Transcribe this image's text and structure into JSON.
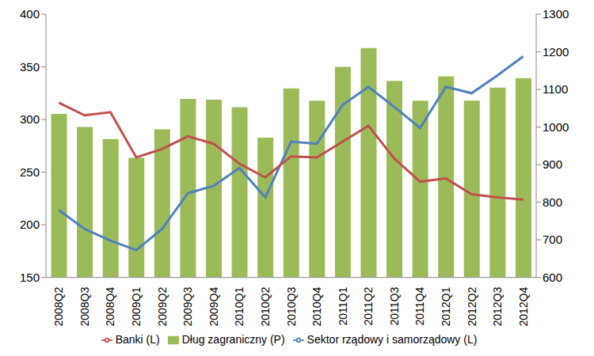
{
  "chart_data": {
    "type": "bar",
    "categories": [
      "2008Q2",
      "2008Q3",
      "2008Q4",
      "2009Q1",
      "2009Q2",
      "2009Q3",
      "2009Q4",
      "2010Q1",
      "2010Q2",
      "2010Q3",
      "2010Q4",
      "2011Q1",
      "2011Q2",
      "2011Q3",
      "2011Q4",
      "2012Q1",
      "2012Q2",
      "2012Q3",
      "2012Q4"
    ],
    "series": [
      {
        "name": "Dług zagraniczny (P)",
        "type": "bar",
        "axis": "y2",
        "color": "#9bbb59",
        "values": [
          1035,
          1000,
          968,
          918,
          994,
          1075,
          1073,
          1053,
          972,
          1103,
          1070,
          1160,
          1210,
          1123,
          1070,
          1135,
          1070,
          1105,
          1130
        ]
      },
      {
        "name": "Sektor rządowy i samorządowy (L)",
        "type": "line",
        "color": "#4f81bd",
        "values": [
          214,
          196,
          185,
          176,
          196,
          230,
          237,
          254,
          226,
          279,
          277,
          314,
          331,
          312,
          292,
          331,
          325,
          342,
          360
        ]
      },
      {
        "name": "Banki (L)",
        "type": "line",
        "color": "#c0504d",
        "values": [
          316,
          304,
          307,
          264,
          272,
          284,
          277,
          258,
          245,
          265,
          264,
          279,
          294,
          263,
          241,
          244,
          229,
          226,
          224
        ]
      }
    ],
    "ylim": [
      150,
      400
    ],
    "yticks": [
      150,
      200,
      250,
      300,
      350,
      400
    ],
    "y2lim": [
      600,
      1300
    ],
    "y2ticks": [
      600,
      700,
      800,
      900,
      1000,
      1100,
      1200,
      1300
    ],
    "grid": false,
    "legend": "bottom"
  }
}
